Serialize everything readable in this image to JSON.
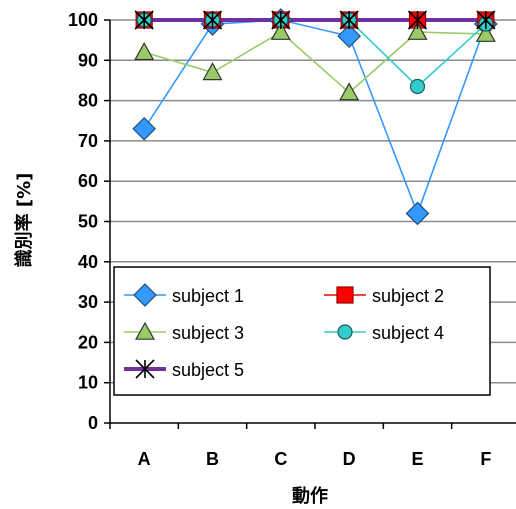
{
  "chart_data": {
    "type": "line",
    "categories": [
      "A",
      "B",
      "C",
      "D",
      "E",
      "F"
    ],
    "xlabel": "動作",
    "ylabel": "識別率 [%]",
    "ylim": [
      0,
      100
    ],
    "yticks": [
      0,
      10,
      20,
      30,
      40,
      50,
      60,
      70,
      80,
      90,
      100
    ],
    "grid": true,
    "legend_position": "lower-center",
    "series": [
      {
        "name": "subject 1",
        "values": [
          73,
          99,
          100,
          96,
          52,
          99
        ],
        "color": "#3399FF",
        "marker": "diamond",
        "marker_fill": "#3399FF"
      },
      {
        "name": "subject 2",
        "values": [
          100,
          100,
          100,
          100,
          100,
          100
        ],
        "color": "#FF0000",
        "marker": "square",
        "marker_fill": "#FF0000"
      },
      {
        "name": "subject 3",
        "values": [
          92,
          87,
          97,
          82,
          97,
          96.5
        ],
        "color": "#99CC66",
        "marker": "triangle",
        "marker_fill": "#99CC66"
      },
      {
        "name": "subject 4",
        "values": [
          100,
          100,
          100,
          100,
          83.5,
          99
        ],
        "color": "#33CCCC",
        "marker": "circle",
        "marker_fill": "#33CCCC"
      },
      {
        "name": "subject 5",
        "values": [
          100,
          100,
          100,
          100,
          100,
          100
        ],
        "color": "#7030A0",
        "marker": "star",
        "marker_fill": "none"
      }
    ]
  }
}
